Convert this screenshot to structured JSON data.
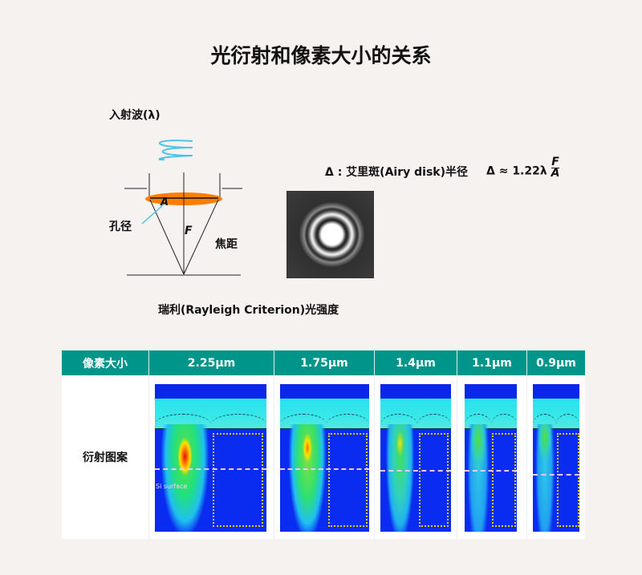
{
  "title": "光衍射和像素大小的关系",
  "diagram": {
    "incident_wave": "入射波(λ)",
    "aperture_symbol": "A",
    "aperture_label": "孔径",
    "focal_symbol": "F",
    "focal_label": "焦距",
    "airy_label": "Δ : 艾里斑(Airy disk)半径",
    "formula_prefix": "Δ ≈ 1.22λ",
    "formula_num": "F",
    "formula_den": "A",
    "caption": "瑞利(Rayleigh Criterion)光强度",
    "wave_color": "#4cc3ea",
    "lens_color": "#ff7d00"
  },
  "table": {
    "header_label": "像素大小",
    "row_label": "衍射图案",
    "si_surface": "Si surface",
    "columns": [
      "2.25μm",
      "1.75μm",
      "1.4μm",
      "1.1μm",
      "0.9μm"
    ],
    "header_color": "#00958a"
  }
}
